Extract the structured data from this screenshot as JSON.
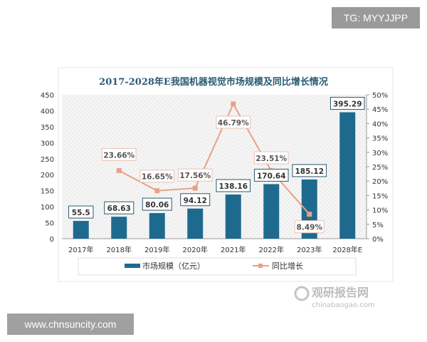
{
  "watermark_top": "TG: MYYJJPP",
  "watermark_bottom": "www.chnsuncity.com",
  "logo": {
    "cn": "观研报告网",
    "en": "chinabaogao.com"
  },
  "chart_data": {
    "type": "bar+line",
    "title": "2017-2028年E我国机器视觉市场规模及同比增长情况",
    "categories": [
      "2017年",
      "2018年",
      "2019年",
      "2020年",
      "2021年",
      "2022年",
      "2023年",
      "2028年E"
    ],
    "series": [
      {
        "name": "市场规模（亿元）",
        "type": "bar",
        "axis": "left",
        "color": "#1e6a8e",
        "values": [
          55.5,
          68.63,
          80.06,
          94.12,
          138.16,
          170.64,
          185.12,
          395.29
        ],
        "labels": [
          "55.5",
          "68.63",
          "80.06",
          "94.12",
          "138.16",
          "170.64",
          "185.12",
          "395.29"
        ]
      },
      {
        "name": "同比增长",
        "type": "line",
        "axis": "right",
        "color": "#e7a287",
        "values": [
          null,
          23.66,
          16.65,
          17.56,
          46.79,
          23.51,
          8.49,
          null
        ],
        "labels": [
          "",
          "23.66%",
          "16.65%",
          "17.56%",
          "46.79%",
          "23.51%",
          "8.49%",
          ""
        ]
      }
    ],
    "y_left": {
      "range": [
        0,
        450
      ],
      "ticks": [
        "0",
        "50",
        "100",
        "150",
        "200",
        "250",
        "300",
        "350",
        "400",
        "450"
      ]
    },
    "y_right": {
      "range": [
        0,
        50
      ],
      "ticks": [
        "0%",
        "5%",
        "10%",
        "15%",
        "20%",
        "25%",
        "30%",
        "35%",
        "40%",
        "45%",
        "50%"
      ]
    },
    "legend": "bottom",
    "grid": false
  }
}
